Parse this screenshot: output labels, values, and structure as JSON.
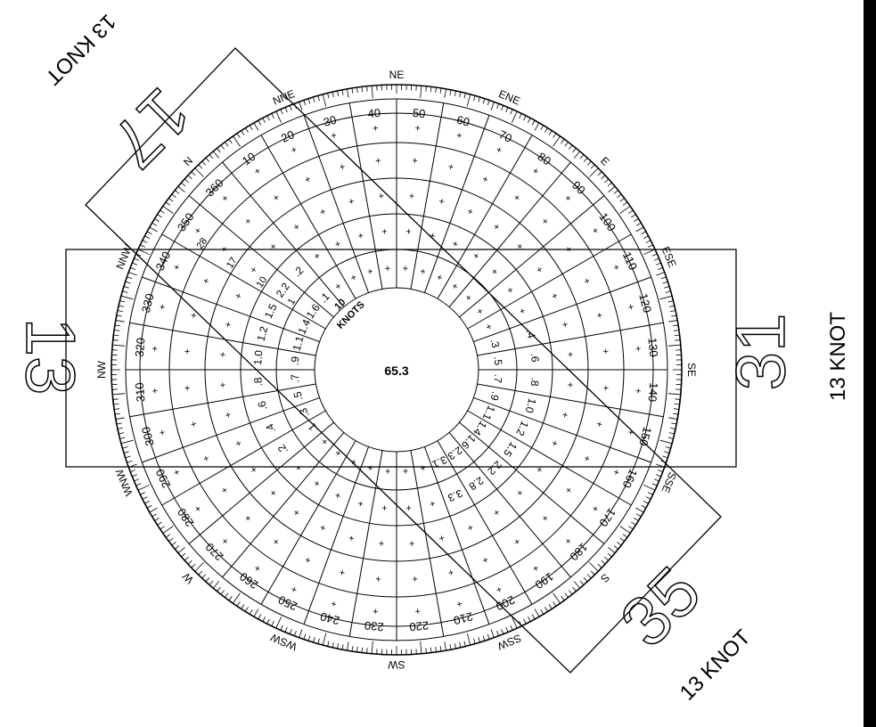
{
  "center_value": "65.3",
  "knots_label_line1": "10",
  "knots_label_line2": "KNOTS",
  "compass_points": [
    "NE",
    "ENE",
    "E",
    "ESE",
    "SE",
    "SSE",
    "S",
    "SSW",
    "SW",
    "WSW",
    "W",
    "WNW",
    "NW",
    "NNW",
    "N",
    "NNE"
  ],
  "degree_labels": [
    "10",
    "20",
    "30",
    "40",
    "50",
    "60",
    "70",
    "80",
    "90",
    "100",
    "110",
    "120",
    "130",
    "140",
    "150",
    "160",
    "170",
    "180",
    "190",
    "200",
    "210",
    "220",
    "230",
    "240",
    "250",
    "260",
    "270",
    "280",
    "290",
    "300",
    "310",
    "320",
    "330",
    "340",
    "350",
    "360"
  ],
  "runway_overlays": [
    {
      "id": "runway-17-35",
      "end_a": "17",
      "end_b": "35",
      "wind_label_a": "13 KNOT",
      "wind_label_b": "13 KNOT"
    },
    {
      "id": "runway-13-31",
      "end_a": "13",
      "end_b": "31",
      "wind_label_b": "13 KNOT"
    }
  ],
  "ring_speed_labels": [
    "1",
    "10",
    "17",
    "28"
  ],
  "cell_values": [
    ".1",
    ".2",
    ".3",
    ".4",
    ".5",
    ".6",
    ".7",
    ".8",
    ".9",
    "1.0",
    "1.1",
    "1.2",
    "1.4",
    "1.5",
    "1.6",
    "2.2",
    "2.3",
    "2.8",
    "3.1",
    "3.3"
  ]
}
